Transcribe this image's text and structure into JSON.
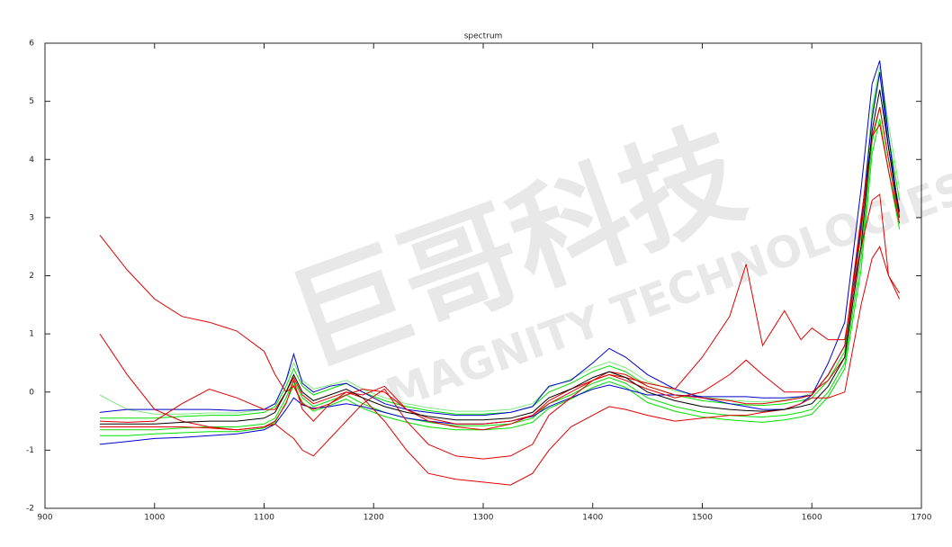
{
  "chart_data": {
    "type": "line",
    "title": "spectrum",
    "watermark": {
      "brand": "巨哥科技",
      "company": "MAGNITY TECHNOLOGIES"
    },
    "x": [
      950,
      975,
      1000,
      1025,
      1050,
      1075,
      1100,
      1110,
      1120,
      1127,
      1135,
      1145,
      1160,
      1175,
      1190,
      1210,
      1230,
      1250,
      1275,
      1300,
      1325,
      1345,
      1360,
      1380,
      1400,
      1415,
      1430,
      1450,
      1475,
      1500,
      1525,
      1540,
      1555,
      1575,
      1590,
      1600,
      1615,
      1630,
      1645,
      1655,
      1662,
      1670,
      1680
    ],
    "series": [
      {
        "color": "#00e000",
        "values": [
          -0.45,
          -0.45,
          -0.45,
          -0.42,
          -0.4,
          -0.4,
          -0.35,
          -0.25,
          0.1,
          0.4,
          0.1,
          -0.05,
          0.05,
          0.15,
          0.0,
          -0.15,
          -0.25,
          -0.32,
          -0.38,
          -0.38,
          -0.35,
          -0.25,
          0.0,
          0.15,
          0.35,
          0.45,
          0.35,
          0.1,
          -0.05,
          -0.15,
          -0.2,
          -0.22,
          -0.23,
          -0.2,
          -0.15,
          -0.1,
          0.2,
          0.7,
          2.7,
          4.8,
          5.5,
          4.4,
          3.3
        ]
      },
      {
        "color": "#00e000",
        "values": [
          -0.65,
          -0.65,
          -0.65,
          -0.62,
          -0.6,
          -0.6,
          -0.55,
          -0.45,
          -0.1,
          0.2,
          -0.1,
          -0.25,
          -0.15,
          -0.05,
          -0.2,
          -0.35,
          -0.45,
          -0.52,
          -0.58,
          -0.58,
          -0.55,
          -0.45,
          -0.2,
          -0.05,
          0.15,
          0.25,
          0.15,
          -0.1,
          -0.25,
          -0.35,
          -0.4,
          -0.42,
          -0.43,
          -0.4,
          -0.35,
          -0.3,
          0.0,
          0.5,
          2.3,
          4.3,
          4.9,
          4.0,
          2.9
        ]
      },
      {
        "color": "#7ee87e",
        "values": [
          -0.05,
          -0.3,
          -0.38,
          -0.38,
          -0.36,
          -0.36,
          -0.3,
          -0.2,
          0.2,
          0.5,
          0.2,
          0.05,
          0.12,
          0.2,
          0.05,
          -0.1,
          -0.2,
          -0.27,
          -0.33,
          -0.33,
          -0.3,
          -0.2,
          0.08,
          0.22,
          0.42,
          0.52,
          0.42,
          0.18,
          0.02,
          -0.08,
          -0.14,
          -0.16,
          -0.17,
          -0.14,
          -0.08,
          -0.02,
          0.28,
          0.8,
          2.8,
          4.9,
          5.6,
          4.6,
          3.5
        ]
      },
      {
        "color": "#00e000",
        "values": [
          -0.75,
          -0.75,
          -0.72,
          -0.7,
          -0.68,
          -0.68,
          -0.62,
          -0.52,
          -0.18,
          0.12,
          -0.18,
          -0.33,
          -0.23,
          -0.12,
          -0.28,
          -0.42,
          -0.52,
          -0.6,
          -0.65,
          -0.65,
          -0.62,
          -0.52,
          -0.28,
          -0.12,
          0.08,
          0.18,
          0.08,
          -0.18,
          -0.33,
          -0.43,
          -0.48,
          -0.5,
          -0.52,
          -0.48,
          -0.43,
          -0.38,
          -0.08,
          0.4,
          2.1,
          4.1,
          4.7,
          3.8,
          2.8
        ]
      },
      {
        "color": "#0000cc",
        "values": [
          -0.35,
          -0.3,
          -0.3,
          -0.3,
          -0.3,
          -0.32,
          -0.3,
          -0.2,
          0.2,
          0.65,
          0.15,
          0.0,
          0.1,
          0.15,
          0.0,
          -0.2,
          -0.3,
          -0.35,
          -0.4,
          -0.4,
          -0.35,
          -0.25,
          0.1,
          0.2,
          0.5,
          0.75,
          0.6,
          0.3,
          0.05,
          -0.1,
          -0.2,
          -0.25,
          -0.3,
          -0.3,
          -0.2,
          -0.05,
          0.5,
          1.2,
          3.5,
          5.3,
          5.7,
          4.4,
          3.0
        ]
      },
      {
        "color": "#0000cc",
        "values": [
          -0.9,
          -0.85,
          -0.8,
          -0.78,
          -0.75,
          -0.72,
          -0.65,
          -0.55,
          -0.3,
          -0.1,
          -0.22,
          -0.28,
          -0.25,
          -0.2,
          -0.25,
          -0.35,
          -0.45,
          -0.5,
          -0.55,
          -0.55,
          -0.5,
          -0.42,
          -0.25,
          -0.1,
          0.05,
          0.12,
          0.05,
          -0.05,
          -0.05,
          -0.08,
          -0.08,
          -0.08,
          -0.1,
          -0.1,
          -0.08,
          -0.05,
          0.3,
          0.8,
          2.9,
          4.7,
          5.5,
          4.2,
          3.0
        ]
      },
      {
        "color": "#e00000",
        "values": [
          2.7,
          2.1,
          1.6,
          1.3,
          1.2,
          1.05,
          0.7,
          0.3,
          0.0,
          0.1,
          -0.2,
          -0.3,
          -0.2,
          -0.05,
          0.05,
          0.0,
          -0.3,
          -0.45,
          -0.55,
          -0.55,
          -0.5,
          -0.4,
          -0.2,
          0.0,
          0.2,
          0.3,
          0.25,
          0.15,
          0.05,
          0.6,
          1.3,
          2.2,
          0.8,
          1.4,
          0.9,
          1.1,
          0.9,
          0.9,
          2.5,
          3.3,
          3.4,
          2.0,
          1.7
        ]
      },
      {
        "color": "#e00000",
        "values": [
          1.0,
          0.3,
          -0.3,
          -0.5,
          -0.6,
          -0.65,
          -0.6,
          -0.5,
          -0.2,
          0.2,
          -0.3,
          -0.5,
          -0.2,
          0.0,
          -0.1,
          -0.5,
          -1.0,
          -1.4,
          -1.5,
          -1.55,
          -1.6,
          -1.4,
          -1.0,
          -0.6,
          -0.4,
          -0.25,
          -0.3,
          -0.4,
          -0.5,
          -0.45,
          -0.4,
          -0.4,
          -0.35,
          -0.3,
          -0.2,
          -0.1,
          -0.1,
          0.0,
          1.5,
          2.3,
          2.5,
          2.0,
          1.6
        ]
      },
      {
        "color": "#e00000",
        "values": [
          -0.6,
          -0.6,
          -0.6,
          -0.6,
          -0.62,
          -0.65,
          -0.6,
          -0.55,
          -0.7,
          -0.8,
          -1.0,
          -1.1,
          -0.8,
          -0.5,
          -0.2,
          0.05,
          -0.5,
          -0.9,
          -1.1,
          -1.15,
          -1.1,
          -0.9,
          -0.4,
          -0.1,
          0.2,
          0.35,
          0.3,
          0.1,
          -0.05,
          -0.1,
          -0.15,
          -0.2,
          -0.2,
          -0.15,
          -0.1,
          -0.05,
          0.3,
          0.8,
          3.0,
          4.4,
          4.6,
          3.8,
          2.9
        ]
      },
      {
        "color": "#e00000",
        "values": [
          -0.5,
          -0.52,
          -0.5,
          -0.2,
          0.05,
          -0.1,
          -0.3,
          -0.3,
          0.0,
          0.25,
          -0.05,
          -0.2,
          -0.1,
          0.0,
          -0.05,
          0.1,
          -0.3,
          -0.5,
          -0.6,
          -0.65,
          -0.55,
          -0.4,
          -0.15,
          0.05,
          0.2,
          0.3,
          0.2,
          0.05,
          -0.1,
          0.0,
          0.3,
          0.55,
          0.3,
          0.0,
          0.0,
          0.0,
          0.2,
          0.6,
          2.8,
          4.4,
          4.9,
          4.0,
          3.0
        ]
      },
      {
        "color": "#000000",
        "values": [
          -0.55,
          -0.55,
          -0.55,
          -0.52,
          -0.5,
          -0.5,
          -0.45,
          -0.35,
          0.0,
          0.3,
          0.0,
          -0.15,
          -0.05,
          0.05,
          -0.1,
          -0.25,
          -0.35,
          -0.42,
          -0.48,
          -0.48,
          -0.45,
          -0.35,
          -0.1,
          0.05,
          0.25,
          0.35,
          0.25,
          0.0,
          -0.15,
          -0.25,
          -0.3,
          -0.32,
          -0.33,
          -0.3,
          -0.25,
          -0.2,
          0.1,
          0.6,
          2.5,
          4.5,
          5.2,
          4.2,
          3.1
        ]
      }
    ],
    "xlim": [
      900,
      1700
    ],
    "ylim": [
      -2,
      6
    ],
    "xticks": [
      900,
      1000,
      1100,
      1200,
      1300,
      1400,
      1500,
      1600,
      1700
    ],
    "yticks": [
      -2,
      -1,
      0,
      1,
      2,
      3,
      4,
      5,
      6
    ]
  }
}
